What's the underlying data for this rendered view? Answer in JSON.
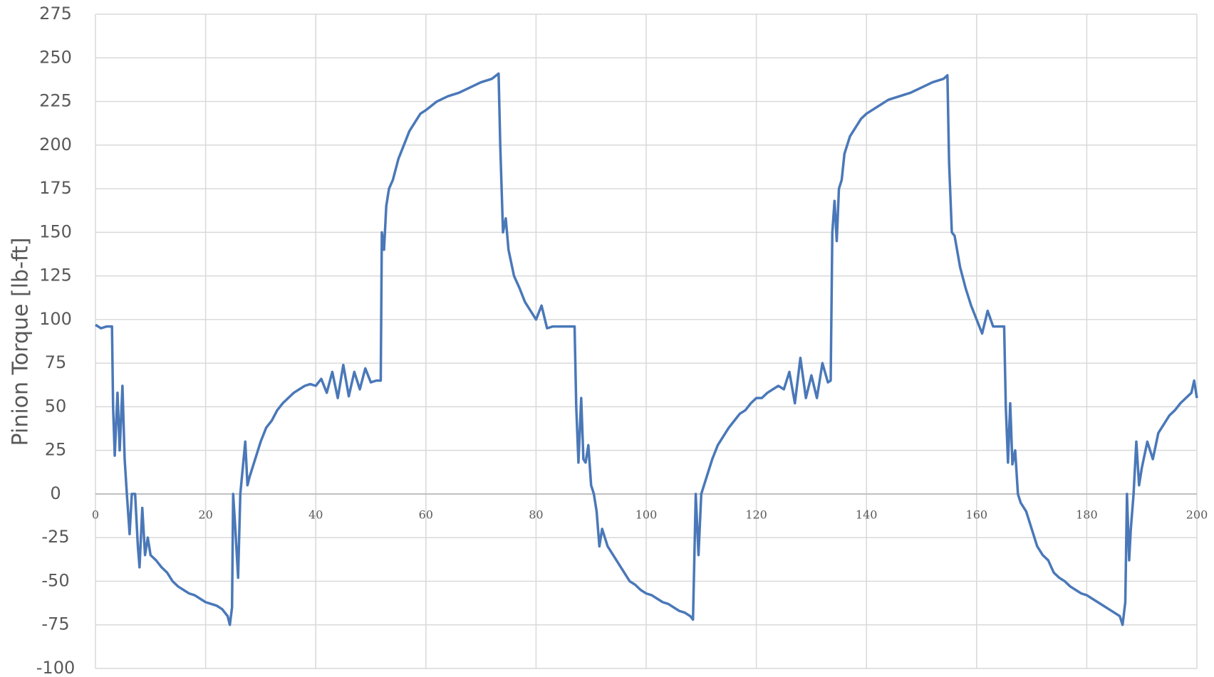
{
  "chart_data": {
    "type": "line",
    "ylabel": "Pinion Torque [lb-ft]",
    "xlim": [
      0,
      200
    ],
    "xticks": [
      0,
      20,
      40,
      60,
      80,
      100,
      120,
      140,
      160,
      180,
      200
    ],
    "ylim": [
      -100,
      275
    ],
    "yticks": [
      -100,
      -75,
      -50,
      -25,
      0,
      25,
      50,
      75,
      100,
      125,
      150,
      175,
      200,
      225,
      250,
      275
    ],
    "grid": true,
    "x": [
      0,
      1,
      2,
      3,
      3.2,
      3.5,
      4,
      4.4,
      4.9,
      5.3,
      5.7,
      6.2,
      6.6,
      7.2,
      7.7,
      8,
      8.5,
      9,
      9.5,
      10,
      11,
      12,
      13,
      14,
      15,
      16,
      17,
      18,
      19,
      20,
      21,
      22,
      23,
      24,
      24.4,
      24.8,
      25,
      25.4,
      25.9,
      26.3,
      27.2,
      27.6,
      28,
      29,
      30,
      31,
      32,
      33,
      34,
      35,
      36,
      37,
      38,
      39,
      40,
      41,
      42,
      43,
      44,
      45,
      46,
      47,
      48,
      49,
      50,
      51,
      51.8,
      52,
      52.4,
      52.8,
      53.3,
      54,
      55,
      56,
      57,
      58,
      59,
      60,
      62,
      64,
      66,
      68,
      70,
      72,
      73.2,
      73.5,
      74,
      74.5,
      75,
      76,
      77,
      78,
      79,
      80,
      81,
      82,
      83,
      84,
      85,
      86,
      87,
      87.3,
      87.7,
      88.2,
      88.6,
      89,
      89.5,
      90,
      90.5,
      91,
      91.5,
      92,
      93,
      94,
      95,
      96,
      97,
      98,
      99,
      100,
      101,
      102,
      103,
      104,
      105,
      106,
      107,
      108,
      108.5,
      109,
      109.5,
      110,
      111,
      112,
      113,
      114,
      115,
      116,
      117,
      118,
      119,
      120,
      121,
      122,
      123,
      124,
      125,
      126,
      127,
      128,
      129,
      130,
      131,
      132,
      133,
      133.5,
      133.8,
      134.2,
      134.6,
      135,
      135.5,
      136,
      137,
      138,
      139,
      140,
      142,
      144,
      146,
      148,
      150,
      152,
      154,
      154.7,
      155,
      155.5,
      156,
      157,
      158,
      159,
      160,
      161,
      162,
      163,
      164,
      165,
      165.3,
      165.7,
      166.1,
      166.5,
      167,
      167.5,
      168,
      169,
      170,
      171,
      172,
      173,
      174,
      175,
      176,
      177,
      178,
      179,
      180,
      181,
      182,
      183,
      184,
      185,
      186,
      186.5,
      187,
      187.3,
      187.7,
      188,
      188.5,
      189,
      189.5,
      190,
      191,
      192,
      193,
      194,
      195,
      196,
      197,
      198,
      199,
      199.5,
      200
    ],
    "series": [
      {
        "color": "#4a78b8",
        "values": [
          97,
          95,
          96,
          96,
          50,
          22,
          58,
          25,
          62,
          20,
          0,
          -23,
          0,
          0,
          -30,
          -42,
          -8,
          -35,
          -25,
          -35,
          -38,
          -42,
          -45,
          -50,
          -53,
          -55,
          -57,
          -58,
          -60,
          -62,
          -63,
          -64,
          -66,
          -70,
          -75,
          -65,
          0,
          -20,
          -48,
          0,
          30,
          5,
          10,
          20,
          30,
          38,
          42,
          48,
          52,
          55,
          58,
          60,
          62,
          63,
          62,
          66,
          58,
          70,
          55,
          74,
          56,
          70,
          60,
          72,
          64,
          65,
          65,
          150,
          140,
          165,
          175,
          180,
          192,
          200,
          208,
          213,
          218,
          220,
          225,
          228,
          230,
          233,
          236,
          238,
          241,
          200,
          150,
          158,
          140,
          125,
          118,
          110,
          105,
          100,
          108,
          95,
          96,
          96,
          96,
          96,
          96,
          50,
          18,
          55,
          20,
          18,
          28,
          5,
          0,
          -10,
          -30,
          -20,
          -30,
          -35,
          -40,
          -45,
          -50,
          -52,
          -55,
          -57,
          -58,
          -60,
          -62,
          -63,
          -65,
          -67,
          -68,
          -70,
          -72,
          0,
          -35,
          0,
          10,
          20,
          28,
          33,
          38,
          42,
          46,
          48,
          52,
          55,
          55,
          58,
          60,
          62,
          60,
          70,
          52,
          78,
          55,
          68,
          55,
          75,
          64,
          65,
          150,
          168,
          145,
          175,
          180,
          195,
          205,
          210,
          215,
          218,
          222,
          226,
          228,
          230,
          233,
          236,
          238,
          240,
          190,
          150,
          148,
          130,
          118,
          108,
          100,
          92,
          105,
          96,
          96,
          96,
          50,
          18,
          52,
          17,
          25,
          0,
          -5,
          -10,
          -20,
          -30,
          -35,
          -38,
          -45,
          -48,
          -50,
          -53,
          -55,
          -57,
          -58,
          -60,
          -62,
          -64,
          -66,
          -68,
          -70,
          -75,
          -62,
          0,
          -38,
          -20,
          0,
          30,
          5,
          15,
          30,
          20,
          35,
          40,
          45,
          48,
          52,
          55,
          58,
          65,
          55
        ]
      }
    ]
  }
}
